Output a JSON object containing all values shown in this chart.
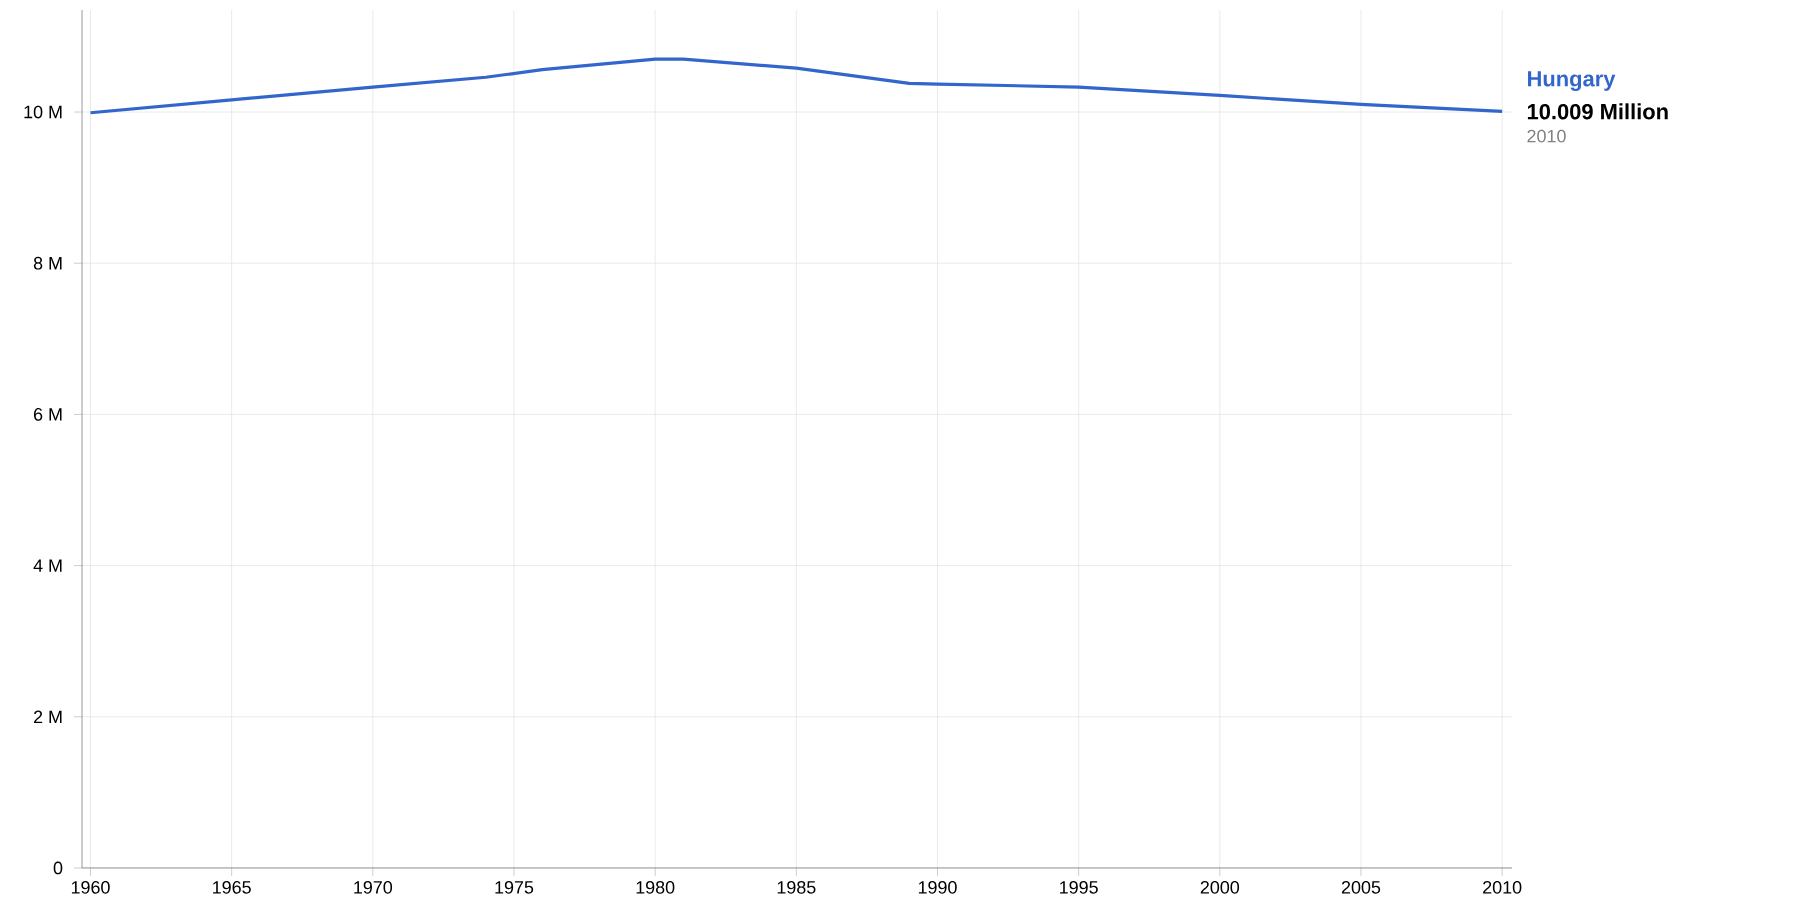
{
  "chart_data": {
    "type": "line",
    "x": [
      1960,
      1965,
      1970,
      1974,
      1976,
      1980,
      1981,
      1985,
      1989,
      1990,
      1995,
      2000,
      2005,
      2010
    ],
    "series": [
      {
        "name": "Hungary",
        "color": "#3366cc",
        "values": [
          9.99,
          10.16,
          10.33,
          10.46,
          10.56,
          10.7,
          10.7,
          10.58,
          10.38,
          10.37,
          10.33,
          10.22,
          10.1,
          10.009
        ]
      }
    ],
    "xlim": [
      1959.7,
      2010.35
    ],
    "ylim": [
      0,
      11.35
    ],
    "xticks": [
      1960,
      1965,
      1970,
      1975,
      1980,
      1985,
      1990,
      1995,
      2000,
      2005,
      2010
    ],
    "yticks": [
      0,
      {
        "value": 2,
        "label": "2 M"
      },
      {
        "value": 4,
        "label": "4 M"
      },
      {
        "value": 6,
        "label": "6 M"
      },
      {
        "value": 8,
        "label": "8 M"
      },
      {
        "value": 10,
        "label": "10 M"
      }
    ],
    "annotations": [
      {
        "text": "10.009 Million",
        "x": 2010,
        "y": 10.009
      },
      "2010"
    ],
    "grid": true,
    "marker": "none",
    "line_style": "solid"
  }
}
